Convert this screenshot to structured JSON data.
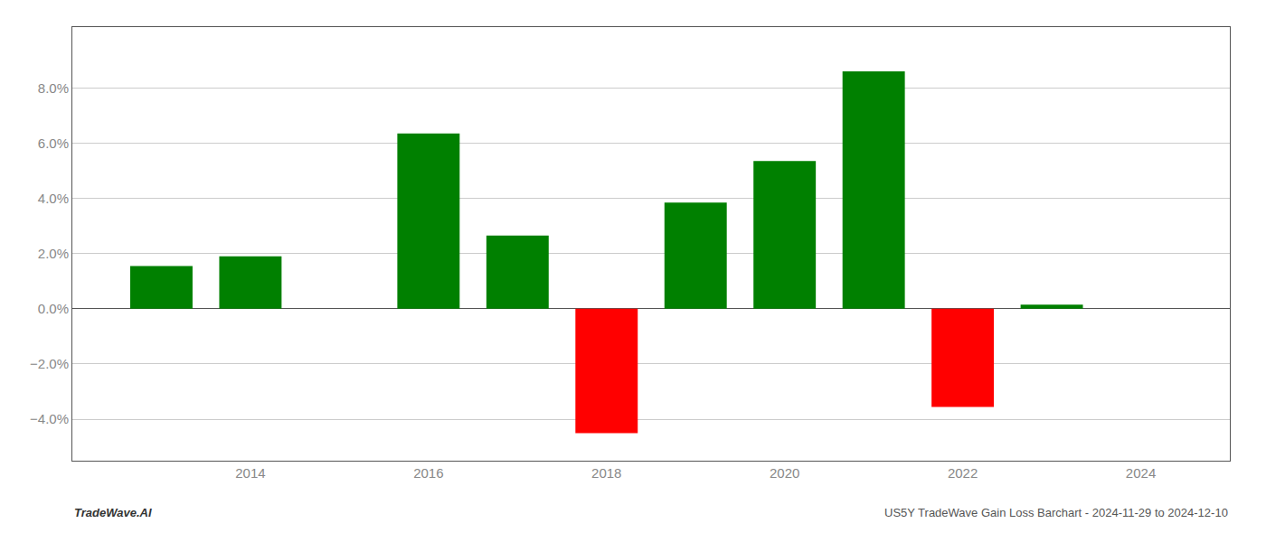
{
  "chart_data": {
    "type": "bar",
    "x": [
      2013,
      2014,
      2016,
      2017,
      2018,
      2019,
      2020,
      2021,
      2022,
      2023
    ],
    "values": [
      0.0155,
      0.019,
      0.0635,
      0.0265,
      -0.045,
      0.0385,
      0.0535,
      0.086,
      -0.0355,
      0.0015
    ],
    "colors": [
      "#008000",
      "#008000",
      "#008000",
      "#008000",
      "#ff0000",
      "#008000",
      "#008000",
      "#008000",
      "#ff0000",
      "#008000"
    ],
    "xlim": [
      2012.0,
      2025.0
    ],
    "ylim": [
      -0.055,
      0.102
    ],
    "xticks": [
      2014,
      2016,
      2018,
      2020,
      2022,
      2024
    ],
    "yticks": [
      {
        "value": -0.04,
        "label": "−4.0%"
      },
      {
        "value": -0.02,
        "label": "−2.0%"
      },
      {
        "value": 0.0,
        "label": "0.0%"
      },
      {
        "value": 0.02,
        "label": "2.0%"
      },
      {
        "value": 0.04,
        "label": "4.0%"
      },
      {
        "value": 0.06,
        "label": "6.0%"
      },
      {
        "value": 0.08,
        "label": "8.0%"
      }
    ],
    "grid": true,
    "annotations": [
      "TradeWave.AI",
      "US5Y TradeWave Gain Loss Barchart - 2024-11-29 to 2024-12-10"
    ]
  }
}
